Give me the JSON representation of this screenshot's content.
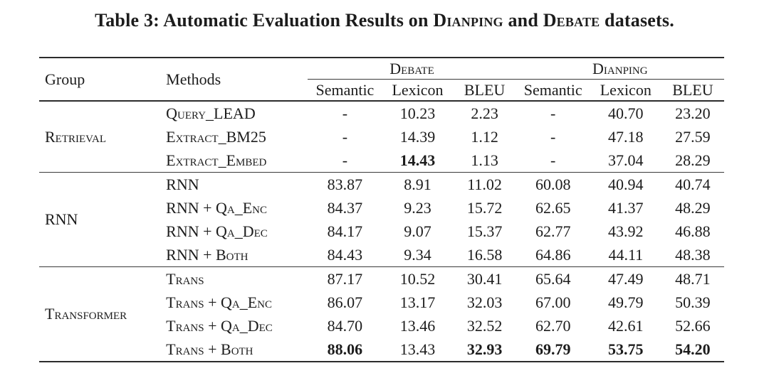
{
  "caption": {
    "prefix": "Table 3: Automatic Evaluation Results on ",
    "dataset1": "Dianping",
    "mid": " and ",
    "dataset2": "Debate",
    "suffix": " datasets."
  },
  "table": {
    "headers": {
      "group": "Group",
      "methods": "Methods",
      "dataset_debate": "Debate",
      "dataset_dianping": "Dianping",
      "metrics": [
        "Semantic",
        "Lexicon",
        "BLEU",
        "Semantic",
        "Lexicon",
        "BLEU"
      ]
    },
    "groups": [
      {
        "name": "Retrieval",
        "rows": [
          {
            "method": "Query_LEAD",
            "values": [
              "-",
              "10.23",
              "2.23",
              "-",
              "40.70",
              "23.20"
            ],
            "bold": [
              false,
              false,
              false,
              false,
              false,
              false
            ]
          },
          {
            "method": "Extract_BM25",
            "values": [
              "-",
              "14.39",
              "1.12",
              "-",
              "47.18",
              "27.59"
            ],
            "bold": [
              false,
              false,
              false,
              false,
              false,
              false
            ]
          },
          {
            "method": "Extract_Embed",
            "values": [
              "-",
              "14.43",
              "1.13",
              "-",
              "37.04",
              "28.29"
            ],
            "bold": [
              false,
              true,
              false,
              false,
              false,
              false
            ]
          }
        ]
      },
      {
        "name": "RNN",
        "rows": [
          {
            "method": "RNN",
            "values": [
              "83.87",
              "8.91",
              "11.02",
              "60.08",
              "40.94",
              "40.74"
            ],
            "bold": [
              false,
              false,
              false,
              false,
              false,
              false
            ]
          },
          {
            "method": "RNN + Qa_Enc",
            "values": [
              "84.37",
              "9.23",
              "15.72",
              "62.65",
              "41.37",
              "48.29"
            ],
            "bold": [
              false,
              false,
              false,
              false,
              false,
              false
            ]
          },
          {
            "method": "RNN + Qa_Dec",
            "values": [
              "84.17",
              "9.07",
              "15.37",
              "62.77",
              "43.92",
              "46.88"
            ],
            "bold": [
              false,
              false,
              false,
              false,
              false,
              false
            ]
          },
          {
            "method": "RNN + Both",
            "values": [
              "84.43",
              "9.34",
              "16.58",
              "64.86",
              "44.11",
              "48.38"
            ],
            "bold": [
              false,
              false,
              false,
              false,
              false,
              false
            ]
          }
        ]
      },
      {
        "name": "Transformer",
        "rows": [
          {
            "method": "Trans",
            "values": [
              "87.17",
              "10.52",
              "30.41",
              "65.64",
              "47.49",
              "48.71"
            ],
            "bold": [
              false,
              false,
              false,
              false,
              false,
              false
            ]
          },
          {
            "method": "Trans + Qa_Enc",
            "values": [
              "86.07",
              "13.17",
              "32.03",
              "67.00",
              "49.79",
              "50.39"
            ],
            "bold": [
              false,
              false,
              false,
              false,
              false,
              false
            ]
          },
          {
            "method": "Trans + Qa_Dec",
            "values": [
              "84.70",
              "13.46",
              "32.52",
              "62.70",
              "42.61",
              "52.66"
            ],
            "bold": [
              false,
              false,
              false,
              false,
              false,
              false
            ]
          },
          {
            "method": "Trans + Both",
            "values": [
              "88.06",
              "13.43",
              "32.93",
              "69.79",
              "53.75",
              "54.20"
            ],
            "bold": [
              true,
              false,
              true,
              true,
              true,
              true
            ]
          }
        ]
      }
    ]
  },
  "colors": {
    "background": "#ffffff",
    "text": "#1c1c1c",
    "rule_heavy": "#2c2c2c",
    "rule_light": "#3a3a3a"
  }
}
